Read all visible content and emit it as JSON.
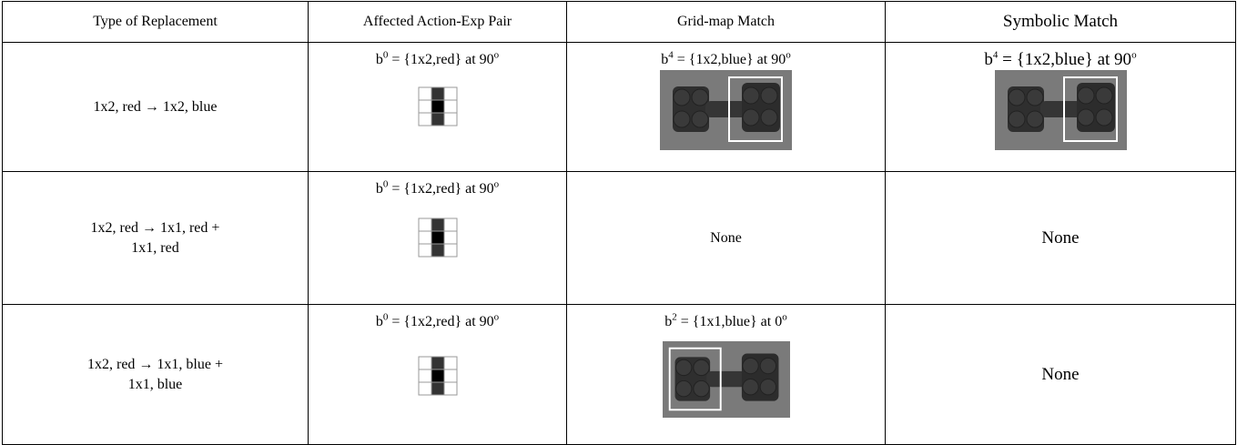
{
  "header": [
    "Type of Replacement",
    "Affected Action-Exp Pair",
    "Grid-map Match",
    "Symbolic Match"
  ],
  "rows": [
    {
      "type": [
        "1x2, red → 1x2, blue"
      ],
      "pair": [
        "b",
        "0",
        " = {1x2,red} at 90",
        "o"
      ],
      "grid": [
        "b",
        "4",
        " = {1x2,blue} at 90",
        "o"
      ],
      "symbolic": [
        "b",
        "4",
        " = {1x2,blue} at 90",
        "o"
      ]
    },
    {
      "type": [
        "1x2, red → 1x1, red +",
        "1x1, red"
      ],
      "pair": [
        "b",
        "0",
        " = {1x2,red} at 90",
        "o"
      ],
      "grid": "None",
      "symbolic": "None"
    },
    {
      "type": [
        "1x2, red → 1x1, blue +",
        "1x1, blue"
      ],
      "pair": [
        "b",
        "0",
        " = {1x2,red} at 90",
        "o"
      ],
      "grid": [
        "b",
        "2",
        " = {1x1,blue} at 0",
        "o"
      ],
      "symbolic": "None"
    }
  ]
}
